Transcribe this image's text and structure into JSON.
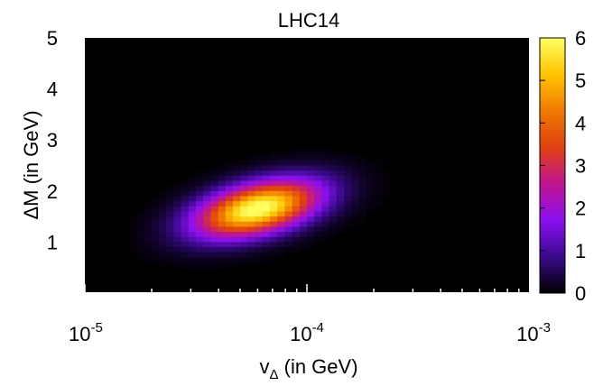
{
  "chart_data": {
    "type": "heatmap",
    "title": "LHC14",
    "xlabel": {
      "base": "v",
      "sub": "Δ",
      "rest": " (in GeV)"
    },
    "ylabel": "ΔM (in GeV)",
    "x_scale": "log",
    "xlim": [
      1e-05,
      0.001
    ],
    "ylim": [
      0,
      5
    ],
    "x_ticks": [
      {
        "base": "10",
        "exp": "-5",
        "value": 1e-05
      },
      {
        "base": "10",
        "exp": "-4",
        "value": 0.0001
      },
      {
        "base": "10",
        "exp": "-3",
        "value": 0.001
      }
    ],
    "y_ticks": [
      "1",
      "2",
      "3",
      "4",
      "5"
    ],
    "colorbar": {
      "range": [
        0,
        6
      ],
      "ticks": [
        "0",
        "1",
        "2",
        "3",
        "4",
        "5",
        "6"
      ],
      "colors": [
        "#000000",
        "#3a0a8c",
        "#8a10f0",
        "#c01590",
        "#e04010",
        "#f07a00",
        "#ffc400",
        "#ffff60"
      ]
    },
    "distribution": {
      "peak_value": 6.2,
      "peak_x": 6e-05,
      "peak_y": 1.65,
      "spread_log10_x": 0.19,
      "spread_y": 0.38,
      "correlation": 0.45
    }
  }
}
